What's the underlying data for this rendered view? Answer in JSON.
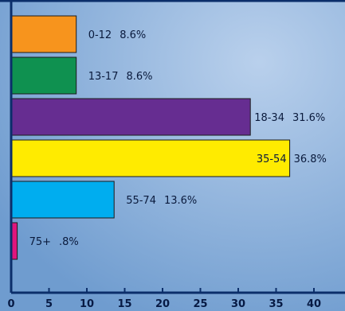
{
  "chart_data": {
    "type": "bar",
    "orientation": "horizontal",
    "categories": [
      "0-12",
      "13-17",
      "18-34",
      "35-54",
      "55-74",
      "75+"
    ],
    "values": [
      8.6,
      8.6,
      31.6,
      36.8,
      13.6,
      0.8
    ],
    "value_labels": [
      "8.6%",
      "8.6%",
      "31.6%",
      "36.8%",
      "13.6%",
      ".8%"
    ],
    "colors": [
      "#f7941d",
      "#0f9150",
      "#662d91",
      "#ffeb00",
      "#00adef",
      "#e0157d"
    ],
    "xlim": [
      0,
      42
    ],
    "xticks": [
      0,
      5,
      10,
      15,
      20,
      25,
      30,
      35,
      40
    ],
    "grid": false,
    "title": "",
    "xlabel": "",
    "ylabel": ""
  }
}
